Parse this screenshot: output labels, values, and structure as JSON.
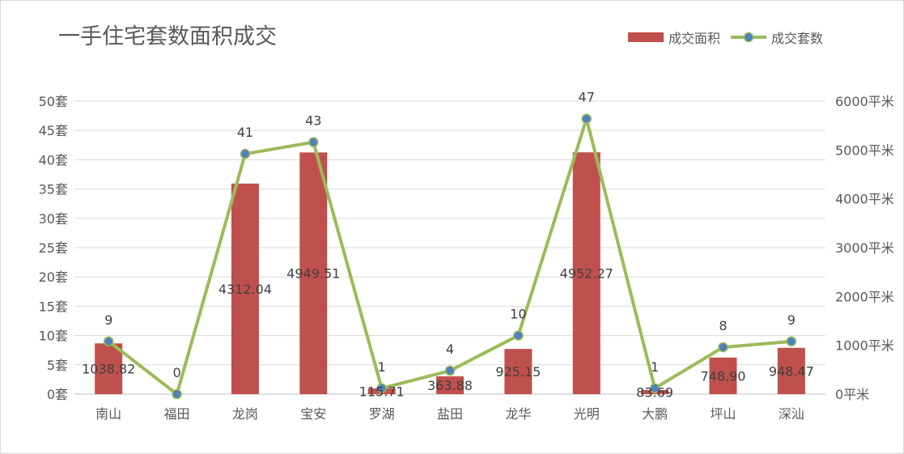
{
  "chart_data": {
    "type": "bar+line",
    "title": "一手住宅套数面积成交",
    "categories": [
      "南山",
      "福田",
      "龙岗",
      "宝安",
      "罗湖",
      "盐田",
      "龙华",
      "光明",
      "大鹏",
      "坪山",
      "深汕"
    ],
    "series": [
      {
        "name": "成交面积",
        "type": "bar",
        "axis": "right",
        "color": "#c0504d",
        "values": [
          1038.82,
          0,
          4312.04,
          4949.51,
          115.71,
          363.88,
          925.15,
          4952.27,
          83.69,
          748.9,
          948.47
        ],
        "labels": [
          "1038.82",
          "",
          "4312.04",
          "4949.51",
          "115.71",
          "363.88",
          "925.15",
          "4952.27",
          "83.69",
          "748.90",
          "948.47"
        ]
      },
      {
        "name": "成交套数",
        "type": "line",
        "axis": "left",
        "color": "#9bbb59",
        "marker_color": "#4f81bd",
        "values": [
          9,
          0,
          41,
          43,
          1,
          4,
          10,
          47,
          1,
          8,
          9
        ],
        "labels": [
          "9",
          "0",
          "41",
          "43",
          "1",
          "4",
          "10",
          "47",
          "1",
          "8",
          "9"
        ]
      }
    ],
    "left_axis": {
      "ylim": [
        0,
        50
      ],
      "ticks": [
        "0套",
        "5套",
        "10套",
        "15套",
        "20套",
        "25套",
        "30套",
        "35套",
        "40套",
        "45套",
        "50套"
      ]
    },
    "right_axis": {
      "ylim": [
        0,
        6000
      ],
      "ticks": [
        "0平米",
        "1000平米",
        "2000平米",
        "3000平米",
        "4000平米",
        "5000平米",
        "6000平米"
      ]
    },
    "grid": true,
    "legend_position": "top-right"
  }
}
